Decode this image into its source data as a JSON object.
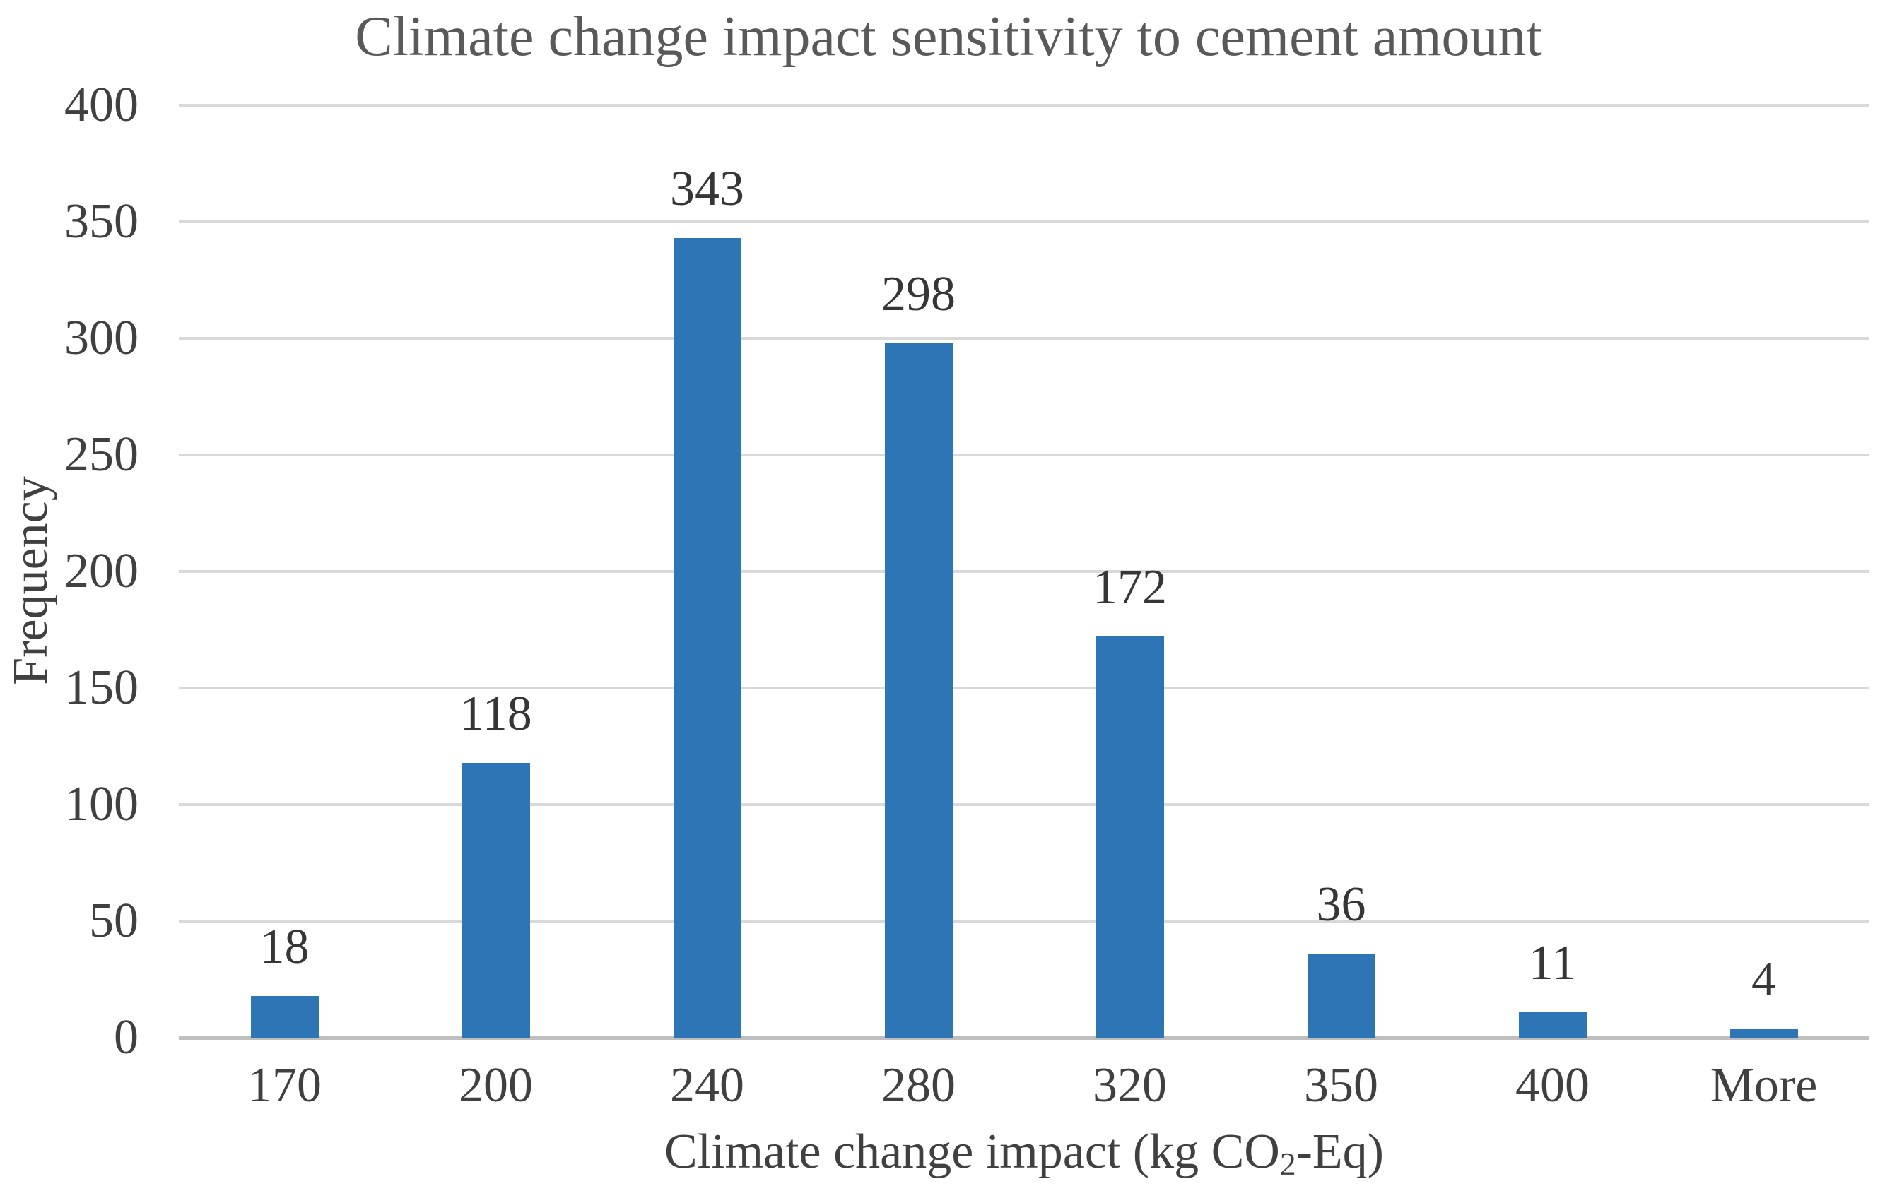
{
  "chart_data": {
    "type": "bar",
    "title": "Climate change impact sensitivity to cement amount",
    "categories": [
      "170",
      "200",
      "240",
      "280",
      "320",
      "350",
      "400",
      "More"
    ],
    "values": [
      18,
      118,
      343,
      298,
      172,
      36,
      11,
      4
    ],
    "data_labels": [
      "18",
      "118",
      "343",
      "298",
      "172",
      "36",
      "11",
      "4"
    ],
    "xlabel": "Climate change impact (kg CO2-Eq)",
    "xlabel_parts": {
      "pre": "Climate change impact (kg CO",
      "sub": "2",
      "post": "-Eq)"
    },
    "ylabel": "Frequency",
    "ylim": [
      0,
      400
    ],
    "yticks": [
      0,
      50,
      100,
      150,
      200,
      250,
      300,
      350,
      400
    ],
    "grid": "horizontal-on",
    "legend": "none"
  },
  "colors": {
    "bar": "#2E75B6",
    "gridline": "#D9D9D9",
    "axis_line": "#BFBFBF",
    "title_text": "#595959",
    "tick_text": "#404040",
    "data_label_text": "#363636"
  }
}
